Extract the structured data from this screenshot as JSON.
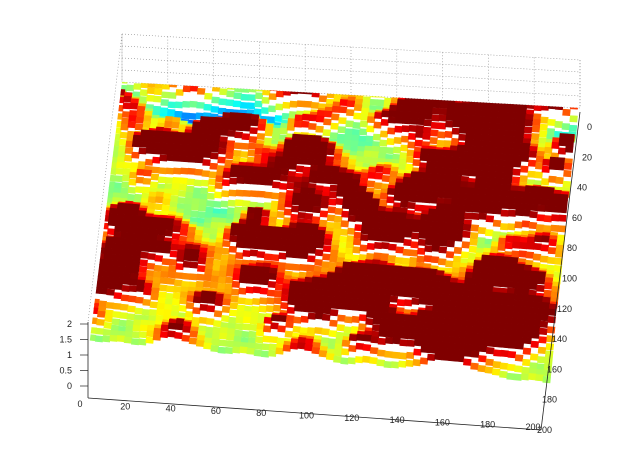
{
  "chart_data": {
    "type": "surface",
    "title": "",
    "xlabel": "",
    "ylabel": "",
    "zlabel": "",
    "colormap": "jet",
    "grid": true,
    "legend": "none",
    "xlim": [
      0,
      200
    ],
    "ylim": [
      0,
      200
    ],
    "zlim": [
      0,
      2
    ],
    "x_ticks": [
      "0",
      "20",
      "40",
      "60",
      "80",
      "100",
      "120",
      "140",
      "160",
      "180",
      "200"
    ],
    "y_ticks": [
      "0",
      "20",
      "40",
      "60",
      "80",
      "100",
      "120",
      "140",
      "160",
      "180",
      "200"
    ],
    "z_ticks": [
      "0",
      "0.5",
      "1",
      "1.5",
      "2"
    ],
    "z_range_observed": [
      0,
      2
    ],
    "description_values": {
      "low_regions_y": [
        20,
        40
      ],
      "high_regions_y": [
        130,
        160
      ],
      "notable_peak": {
        "x": 150,
        "y": 140,
        "z": 2.0
      }
    }
  }
}
